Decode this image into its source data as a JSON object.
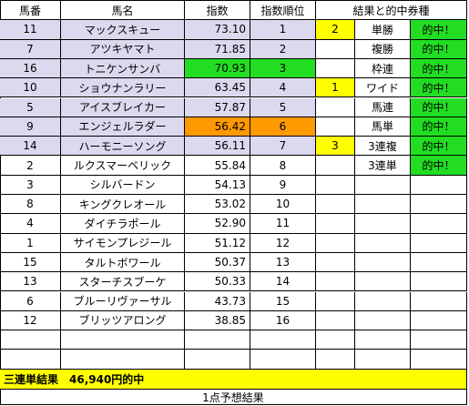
{
  "headers": [
    "馬番",
    "馬名",
    "指数",
    "指数順位",
    "結果と的中券種"
  ],
  "rows": [
    {
      "no": "11",
      "name": "マックスキュー",
      "idx": "73.10",
      "rank": "1"
    },
    {
      "no": "7",
      "name": "アツキヤマト",
      "idx": "71.85",
      "rank": "2"
    },
    {
      "no": "16",
      "name": "トニケンサンバ",
      "idx": "70.93",
      "rank": "3"
    },
    {
      "no": "10",
      "name": "ショウナンラリー",
      "idx": "63.45",
      "rank": "4"
    },
    {
      "no": "5",
      "name": "アイスブレイカー",
      "idx": "57.87",
      "rank": "5"
    },
    {
      "no": "9",
      "name": "エンジェルラダー",
      "idx": "56.42",
      "rank": "6"
    },
    {
      "no": "14",
      "name": "ハーモニーソング",
      "idx": "56.11",
      "rank": "7"
    },
    {
      "no": "2",
      "name": "ルクスマーベリック",
      "idx": "55.84",
      "rank": "8"
    },
    {
      "no": "3",
      "name": "シルバードン",
      "idx": "54.13",
      "rank": "9"
    },
    {
      "no": "8",
      "name": "キングクレオール",
      "idx": "53.02",
      "rank": "10"
    },
    {
      "no": "4",
      "name": "ダイチラポール",
      "idx": "52.90",
      "rank": "11"
    },
    {
      "no": "1",
      "name": "サイモンプレジール",
      "idx": "51.12",
      "rank": "12"
    },
    {
      "no": "15",
      "name": "タルトボワール",
      "idx": "50.37",
      "rank": "13"
    },
    {
      "no": "13",
      "name": "スターチスブーケ",
      "idx": "50.33",
      "rank": "14"
    },
    {
      "no": "6",
      "name": "ブルーリヴァーサル",
      "idx": "43.73",
      "rank": "15"
    },
    {
      "no": "12",
      "name": "ブリッツアロング",
      "idx": "38.85",
      "rank": "16"
    }
  ],
  "results": [
    {
      "place": "2",
      "ticket": "単勝",
      "hit": "的中！"
    },
    {
      "place": "",
      "ticket": "複勝",
      "hit": "的中！"
    },
    {
      "place": "",
      "ticket": "枠連",
      "hit": "的中！"
    },
    {
      "place": "1",
      "ticket": "ワイド",
      "hit": "的中！"
    },
    {
      "place": "",
      "ticket": "馬連",
      "hit": "的中！"
    },
    {
      "place": "",
      "ticket": "馬単",
      "hit": "的中！"
    },
    {
      "place": "3",
      "ticket": "3連複",
      "hit": "的中！"
    },
    {
      "place": "",
      "ticket": "3連単",
      "hit": "的中！"
    }
  ],
  "colors": {
    "lavender": "#dcd8ee",
    "green": "#22dd22",
    "orange": "#ff9900",
    "yellow": "#ffff00"
  },
  "footer_banner": "三連単結果　46,940円的中",
  "footer_caption": "1点予想結果"
}
